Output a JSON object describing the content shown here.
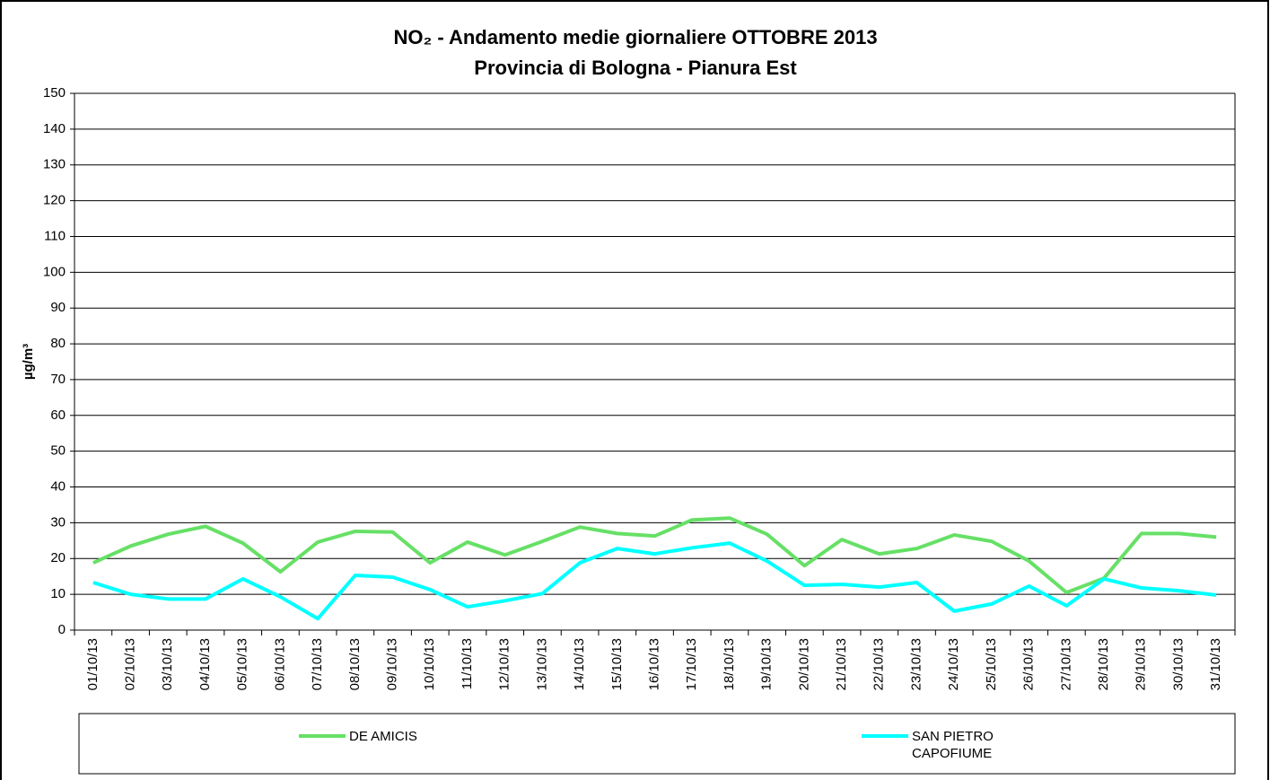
{
  "chart_data": {
    "type": "line",
    "title": "NO₂ - Andamento medie giornaliere OTTOBRE 2013",
    "subtitle": "Provincia di Bologna - Pianura Est",
    "y_label": "µg/m³",
    "categories": [
      "01/10/13",
      "02/10/13",
      "03/10/13",
      "04/10/13",
      "05/10/13",
      "06/10/13",
      "07/10/13",
      "08/10/13",
      "09/10/13",
      "10/10/13",
      "11/10/13",
      "12/10/13",
      "13/10/13",
      "14/10/13",
      "15/10/13",
      "16/10/13",
      "17/10/13",
      "18/10/13",
      "19/10/13",
      "20/10/13",
      "21/10/13",
      "22/10/13",
      "23/10/13",
      "24/10/13",
      "25/10/13",
      "26/10/13",
      "27/10/13",
      "28/10/13",
      "29/10/13",
      "30/10/13",
      "31/10/13"
    ],
    "series": [
      {
        "name": "DE AMICIS",
        "color": "#66e066",
        "values": [
          18.8,
          23.5,
          26.8,
          29,
          24.3,
          16.3,
          24.6,
          27.6,
          27.4,
          18.8,
          24.6,
          21,
          24.8,
          28.8,
          27,
          26.3,
          30.8,
          31.3,
          26.8,
          18,
          25.3,
          21.3,
          22.8,
          26.6,
          24.8,
          19.3,
          10.5,
          14.5,
          27,
          27,
          26
        ]
      },
      {
        "name": "SAN PIETRO CAPOFIUME",
        "color": "#00ffff",
        "values": [
          13.3,
          10,
          8.7,
          8.7,
          14.3,
          9.3,
          3.2,
          15.3,
          14.8,
          11.3,
          6.5,
          8.2,
          10.2,
          18.8,
          22.8,
          21.3,
          23,
          24.3,
          19.3,
          12.5,
          12.8,
          12,
          13.3,
          5.3,
          7.3,
          12.3,
          6.8,
          14.3,
          11.8,
          11,
          9.8
        ]
      }
    ],
    "ylim": [
      0,
      150
    ],
    "yticks": [
      0,
      10,
      20,
      30,
      40,
      50,
      60,
      70,
      80,
      90,
      100,
      110,
      120,
      130,
      140,
      150
    ],
    "grid": true,
    "legend": "bottom"
  }
}
